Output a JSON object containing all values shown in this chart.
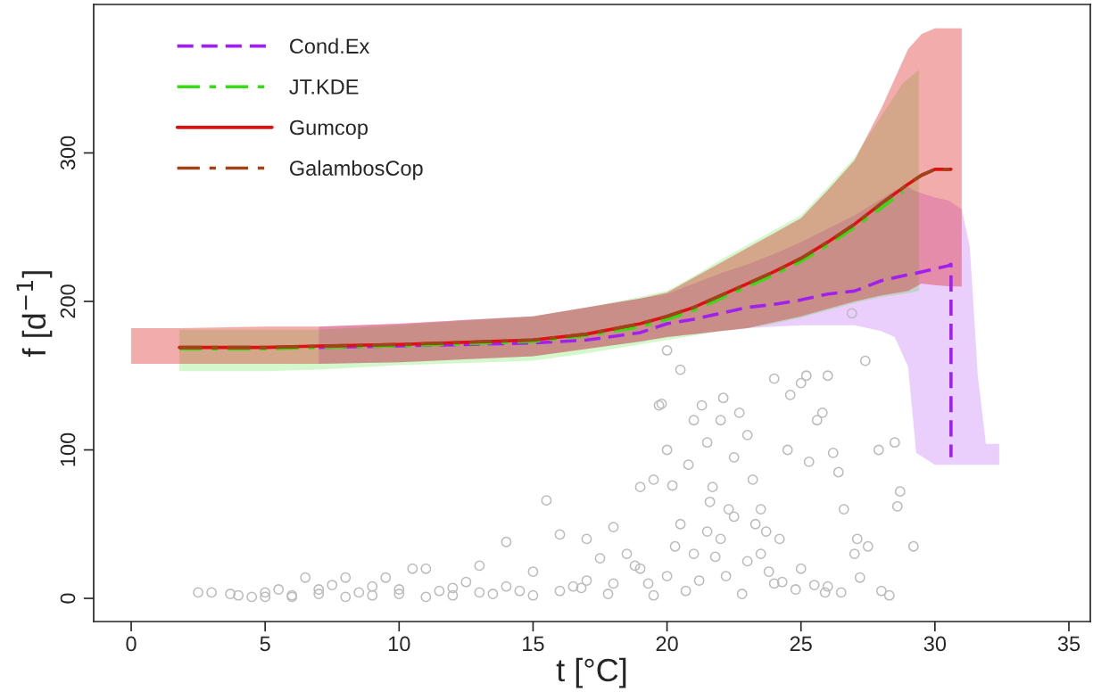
{
  "chart_data": {
    "type": "line",
    "xlabel": "t [°C]",
    "ylabel": "f [d$^{−1}$]",
    "xlim": [
      -1.4,
      35.8
    ],
    "ylim": [
      -15.6,
      400
    ],
    "xticks": [
      0,
      5,
      10,
      15,
      20,
      25,
      30,
      35
    ],
    "yticks": [
      0,
      100,
      200,
      300
    ],
    "grid": false,
    "legend": "top left",
    "series": [
      {
        "type": "scatter",
        "color": "#bbbbbb",
        "marker": "circle",
        "x": [
          2.5,
          3,
          3.7,
          4,
          4.5,
          5,
          5.5,
          6,
          6.5,
          7,
          7.5,
          8,
          8.5,
          9,
          9.5,
          10,
          10.5,
          11,
          11.5,
          12,
          12.5,
          13,
          13.5,
          14,
          14.5,
          15,
          15.5,
          16,
          16.5,
          17,
          17.5,
          18,
          18.5,
          19,
          19.3,
          19.5,
          19.7,
          19.8,
          20,
          20,
          20.2,
          20.5,
          20.8,
          21,
          21.3,
          21.5,
          21.7,
          22,
          22.1,
          22.3,
          22.5,
          22.7,
          23,
          23.2,
          23.5,
          23.7,
          24,
          24.2,
          24.5,
          24.6,
          25,
          25.2,
          25.3,
          25.6,
          25.8,
          26,
          26.2,
          26.4,
          26.6,
          26.9,
          27,
          27.1,
          27.4,
          27.5,
          27.9,
          28,
          28.3,
          28.5,
          28.6,
          28.7,
          29.2,
          20,
          21,
          22,
          23,
          24,
          25,
          26,
          20.5,
          21.5,
          22.5,
          23.5,
          18,
          19,
          17,
          16,
          15,
          14,
          13,
          12,
          11,
          10,
          9,
          8,
          7,
          6,
          5,
          19.5,
          20.7,
          21.2,
          22.8,
          23.8,
          24.8,
          25.5,
          26.5,
          18.8,
          17.8,
          16.8,
          21.8,
          22.2,
          24.3,
          25.9,
          27.2,
          20.3,
          21.6,
          23.3
        ],
        "values": [
          4,
          4,
          3,
          2,
          1,
          4,
          6,
          1,
          14,
          3,
          9,
          14,
          4,
          2,
          14,
          6,
          20,
          20,
          5,
          2,
          11,
          22,
          3,
          38,
          5,
          18,
          66,
          43,
          8,
          40,
          27,
          48,
          30,
          75,
          10,
          80,
          130,
          131,
          100,
          167,
          76,
          154,
          90,
          120,
          130,
          105,
          75,
          120,
          135,
          60,
          95,
          125,
          110,
          80,
          60,
          45,
          148,
          40,
          100,
          137,
          145,
          150,
          92,
          120,
          125,
          150,
          98,
          85,
          60,
          192,
          30,
          40,
          160,
          35,
          100,
          5,
          2,
          105,
          62,
          72,
          35,
          15,
          30,
          40,
          25,
          10,
          20,
          8,
          50,
          45,
          55,
          30,
          10,
          20,
          12,
          5,
          2,
          8,
          4,
          7,
          1,
          3,
          8,
          1,
          6,
          2,
          1,
          2,
          5,
          12,
          3,
          18,
          6,
          9,
          4,
          22,
          3,
          7,
          28,
          15,
          11,
          4,
          14,
          35,
          65,
          50
        ]
      },
      {
        "name": "Cond.Ex",
        "color": "#a020f0",
        "line_style": "dashed",
        "x": [
          7,
          10,
          15,
          17,
          19,
          20,
          21,
          22,
          23,
          24,
          25,
          26,
          27,
          28,
          28.5,
          29,
          29.3,
          30,
          30.5,
          30.6,
          30.6,
          31,
          31.3,
          31.6,
          31.9,
          32.4
        ],
        "values": [
          169,
          170,
          172,
          174,
          179,
          185,
          188,
          192,
          196,
          198,
          201,
          205,
          207,
          214,
          216,
          218,
          219,
          222,
          224,
          225,
          95,
          null,
          null,
          null,
          null,
          null
        ],
        "lower": [
          158,
          159,
          163,
          168,
          173,
          176,
          178,
          180,
          182,
          183,
          184,
          184,
          184,
          180,
          176,
          156,
          98,
          90,
          90,
          90,
          90,
          90,
          90,
          90,
          90,
          90
        ],
        "upper": [
          183,
          185,
          190,
          196,
          202,
          205,
          212,
          219,
          225,
          232,
          240,
          249,
          258,
          269,
          275,
          277,
          274,
          270,
          268,
          267,
          267,
          262,
          237,
          150,
          104,
          104
        ]
      },
      {
        "name": "JT.KDE",
        "color": "#33dd11",
        "line_style": "dashdot",
        "x": [
          1.8,
          5,
          7,
          10,
          15,
          17,
          19,
          20,
          21,
          22,
          23,
          24,
          25,
          26,
          27,
          28,
          28.8,
          29.4
        ],
        "values": [
          168,
          168,
          169,
          170,
          173,
          177,
          183,
          188,
          194,
          202,
          210,
          218,
          227,
          238,
          250,
          263,
          274,
          null
        ],
        "lower": [
          153,
          153,
          154,
          157,
          160,
          165,
          171,
          174,
          177,
          180,
          182,
          185,
          189,
          194,
          199,
          203,
          205,
          207
        ],
        "upper": [
          181,
          181,
          181,
          184,
          190,
          196,
          203,
          207,
          217,
          228,
          238,
          248,
          258,
          277,
          297,
          325,
          347,
          356
        ]
      },
      {
        "name": "Gumcop",
        "color": "#dd1111",
        "line_style": "solid",
        "x": [
          0,
          1.8,
          5,
          7,
          10,
          15,
          17,
          19,
          20,
          21,
          22,
          23,
          24,
          25,
          26,
          27,
          28,
          29,
          29.5,
          30,
          30.6,
          31
        ],
        "values": [
          null,
          169,
          169,
          170,
          171,
          174,
          178,
          185,
          190,
          196,
          204,
          212,
          220,
          229,
          240,
          252,
          266,
          279,
          285,
          289,
          289,
          null
        ],
        "lower": [
          158,
          158,
          158,
          158,
          159,
          163,
          168,
          173,
          176,
          178,
          180,
          182,
          186,
          190,
          195,
          200,
          204,
          207,
          212,
          211,
          210,
          210
        ],
        "upper": [
          182,
          182,
          183,
          183,
          185,
          190,
          196,
          202,
          206,
          216,
          226,
          236,
          246,
          256,
          275,
          295,
          330,
          370,
          380,
          384,
          384,
          384
        ]
      },
      {
        "name": "GalambosCop",
        "color": "#a0441a",
        "line_style": "dashdot",
        "x": [
          1.8,
          5,
          10,
          15,
          17,
          19,
          20,
          21,
          22,
          23,
          24,
          25,
          26,
          27,
          28,
          29,
          29.5,
          30,
          30.6
        ],
        "values": [
          169,
          169,
          171,
          174,
          178,
          185,
          190,
          196,
          204,
          212,
          220,
          229,
          240,
          252,
          266,
          279,
          285,
          289,
          289
        ]
      }
    ]
  }
}
